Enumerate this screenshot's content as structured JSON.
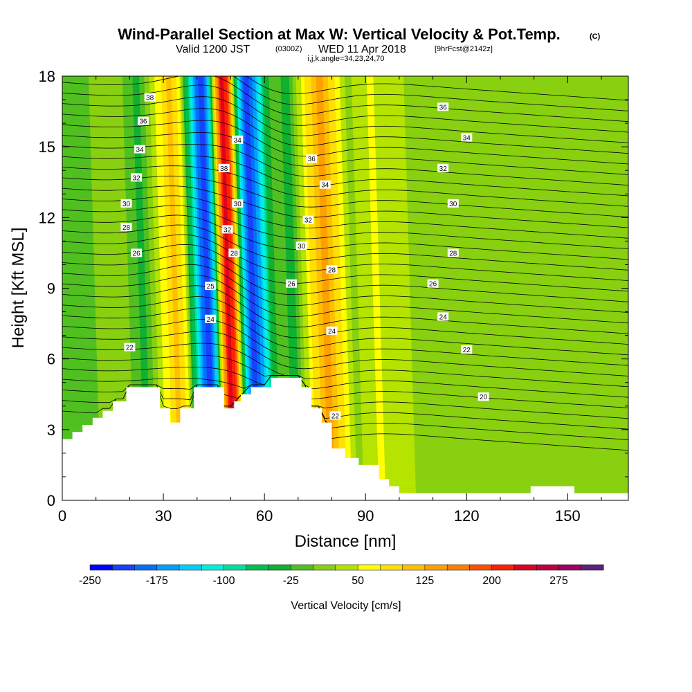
{
  "chart_data": {
    "type": "heatmap",
    "title": "Wind-Parallel Section at Max W: Vertical Velocity & Pot.Temp.",
    "copyright_mark": "(C)",
    "subtitle": {
      "valid": "Valid 1200 JST",
      "utc": "(0300Z)",
      "date": "WED 11 Apr 2018",
      "forecast": "[9hrFcst@2142z]"
    },
    "indices_line": "i,j,k,angle=34,23,24,70",
    "xlabel": "Distance [nm]",
    "ylabel": "Height [Kft MSL]",
    "xlim": [
      0,
      168
    ],
    "ylim": [
      0,
      18
    ],
    "x_ticks": [
      "0",
      "30",
      "60",
      "90",
      "120",
      "150"
    ],
    "y_ticks": [
      "0",
      "3",
      "6",
      "9",
      "12",
      "15",
      "18"
    ],
    "colorbar": {
      "label": "Vertical Velocity [cm/s]",
      "ticks": [
        "-250",
        "-175",
        "-100",
        "-25",
        "50",
        "125",
        "200",
        "275"
      ],
      "levels": [
        -250,
        -225,
        -200,
        -175,
        -150,
        -125,
        -100,
        -75,
        -50,
        -25,
        0,
        25,
        50,
        75,
        100,
        125,
        150,
        175,
        200,
        225,
        250,
        275,
        300
      ],
      "colors": [
        "#0000ff",
        "#1a40ff",
        "#0070ff",
        "#00a0ff",
        "#00d0ff",
        "#00f0e0",
        "#00e0a0",
        "#00c050",
        "#10b030",
        "#50c020",
        "#88d010",
        "#b4e400",
        "#ffff00",
        "#ffe000",
        "#ffc000",
        "#ffa000",
        "#ff8000",
        "#ff5000",
        "#ff2000",
        "#e00020",
        "#c00040",
        "#a00060",
        "#602080"
      ]
    },
    "wind_column_velocity_cm_s": [
      {
        "x": 0,
        "w": 0
      },
      {
        "x": 8,
        "w": -10
      },
      {
        "x": 15,
        "w": 10
      },
      {
        "x": 20,
        "w": 20
      },
      {
        "x": 23,
        "w": -15
      },
      {
        "x": 26,
        "w": -35
      },
      {
        "x": 30,
        "w": 30
      },
      {
        "x": 35,
        "w": 110
      },
      {
        "x": 38,
        "w": 70
      },
      {
        "x": 40,
        "w": -40
      },
      {
        "x": 43,
        "w": -180
      },
      {
        "x": 45,
        "w": -230
      },
      {
        "x": 47,
        "w": -130
      },
      {
        "x": 49,
        "w": 120
      },
      {
        "x": 51,
        "w": 250
      },
      {
        "x": 53,
        "w": 170
      },
      {
        "x": 55,
        "w": -60
      },
      {
        "x": 58,
        "w": -230
      },
      {
        "x": 61,
        "w": -150
      },
      {
        "x": 64,
        "w": -40
      },
      {
        "x": 67,
        "w": 0
      },
      {
        "x": 70,
        "w": -45
      },
      {
        "x": 73,
        "w": 20
      },
      {
        "x": 76,
        "w": 80
      },
      {
        "x": 80,
        "w": 140
      },
      {
        "x": 84,
        "w": 80
      },
      {
        "x": 88,
        "w": 20
      },
      {
        "x": 92,
        "w": 35
      },
      {
        "x": 95,
        "w": 55
      },
      {
        "x": 100,
        "w": 30
      },
      {
        "x": 105,
        "w": 25
      },
      {
        "x": 110,
        "w": 20
      },
      {
        "x": 115,
        "w": 25
      },
      {
        "x": 120,
        "w": 5
      },
      {
        "x": 125,
        "w": 0
      },
      {
        "x": 130,
        "w": 15
      },
      {
        "x": 135,
        "w": 20
      },
      {
        "x": 140,
        "w": 10
      },
      {
        "x": 145,
        "w": 0
      },
      {
        "x": 150,
        "w": 5
      },
      {
        "x": 155,
        "w": 0
      },
      {
        "x": 160,
        "w": 15
      },
      {
        "x": 164,
        "w": 0
      },
      {
        "x": 168,
        "w": 10
      }
    ],
    "terrain_kft": [
      {
        "x": 0,
        "h": 2.6
      },
      {
        "x": 3,
        "h": 2.9
      },
      {
        "x": 6,
        "h": 3.2
      },
      {
        "x": 9,
        "h": 3.5
      },
      {
        "x": 12,
        "h": 3.8
      },
      {
        "x": 15,
        "h": 4.2
      },
      {
        "x": 19,
        "h": 4.8
      },
      {
        "x": 29,
        "h": 3.9
      },
      {
        "x": 32,
        "h": 3.3
      },
      {
        "x": 35,
        "h": 3.9
      },
      {
        "x": 39,
        "h": 4.8
      },
      {
        "x": 48,
        "h": 3.9
      },
      {
        "x": 51,
        "h": 4.2
      },
      {
        "x": 53,
        "h": 4.5
      },
      {
        "x": 56,
        "h": 4.8
      },
      {
        "x": 62,
        "h": 5.2
      },
      {
        "x": 71,
        "h": 4.8
      },
      {
        "x": 74,
        "h": 3.9
      },
      {
        "x": 77,
        "h": 3.3
      },
      {
        "x": 80,
        "h": 2.2
      },
      {
        "x": 84,
        "h": 1.8
      },
      {
        "x": 88,
        "h": 1.5
      },
      {
        "x": 94,
        "h": 0.9
      },
      {
        "x": 97,
        "h": 0.6
      },
      {
        "x": 100,
        "h": 0.3
      },
      {
        "x": 139,
        "h": 0.6
      },
      {
        "x": 152,
        "h": 0.3
      },
      {
        "x": 168,
        "h": 0.3
      }
    ],
    "isentrope_labels": [
      {
        "text": "38",
        "x": 26,
        "y": 17.1
      },
      {
        "text": "36",
        "x": 24,
        "y": 16.1
      },
      {
        "text": "34",
        "x": 23,
        "y": 14.9
      },
      {
        "text": "32",
        "x": 22,
        "y": 13.7
      },
      {
        "text": "30",
        "x": 19,
        "y": 12.6
      },
      {
        "text": "28",
        "x": 19,
        "y": 11.6
      },
      {
        "text": "26",
        "x": 22,
        "y": 10.5
      },
      {
        "text": "22",
        "x": 20,
        "y": 6.5
      },
      {
        "text": "34",
        "x": 52,
        "y": 15.3
      },
      {
        "text": "38",
        "x": 48,
        "y": 14.1
      },
      {
        "text": "30",
        "x": 52,
        "y": 12.6
      },
      {
        "text": "32",
        "x": 49,
        "y": 11.5
      },
      {
        "text": "28",
        "x": 51,
        "y": 10.5
      },
      {
        "text": "25",
        "x": 44,
        "y": 9.1
      },
      {
        "text": "24",
        "x": 44,
        "y": 7.7
      },
      {
        "text": "36",
        "x": 74,
        "y": 14.5
      },
      {
        "text": "34",
        "x": 78,
        "y": 13.4
      },
      {
        "text": "32",
        "x": 73,
        "y": 11.9
      },
      {
        "text": "30",
        "x": 71,
        "y": 10.8
      },
      {
        "text": "28",
        "x": 80,
        "y": 9.8
      },
      {
        "text": "26",
        "x": 68,
        "y": 9.2
      },
      {
        "text": "24",
        "x": 80,
        "y": 7.2
      },
      {
        "text": "22",
        "x": 81,
        "y": 3.6
      },
      {
        "text": "36",
        "x": 113,
        "y": 16.7
      },
      {
        "text": "34",
        "x": 120,
        "y": 15.4
      },
      {
        "text": "32",
        "x": 113,
        "y": 14.1
      },
      {
        "text": "30",
        "x": 116,
        "y": 12.6
      },
      {
        "text": "28",
        "x": 116,
        "y": 10.5
      },
      {
        "text": "26",
        "x": 110,
        "y": 9.2
      },
      {
        "text": "24",
        "x": 113,
        "y": 7.8
      },
      {
        "text": "22",
        "x": 120,
        "y": 6.4
      },
      {
        "text": "20",
        "x": 125,
        "y": 4.4
      }
    ]
  }
}
